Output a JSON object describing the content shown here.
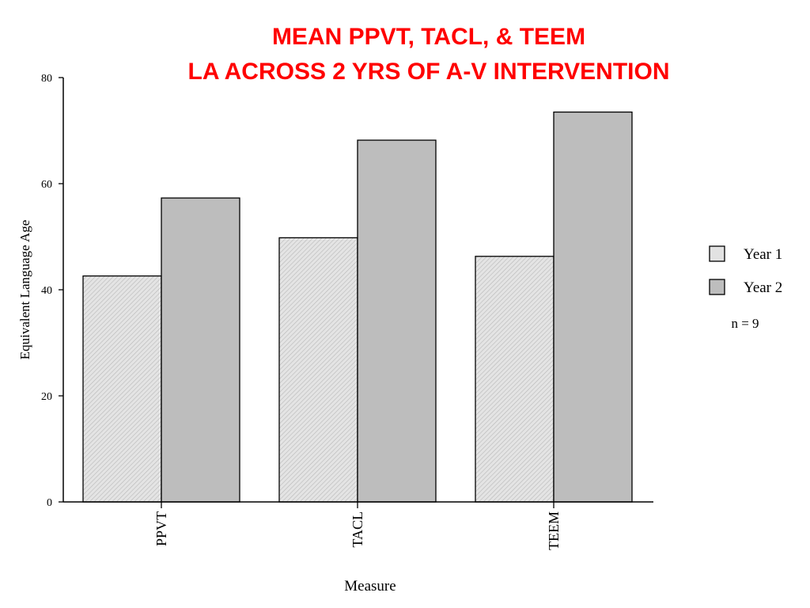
{
  "title": {
    "line1": "MEAN PPVT, TACL, & TEEM",
    "line2": "LA ACROSS 2 YRS OF A-V INTERVENTION"
  },
  "chart_data": {
    "type": "bar",
    "title": "MEAN PPVT, TACL, & TEEM LA ACROSS 2 YRS OF A-V INTERVENTION",
    "categories": [
      "PPVT",
      "TACL",
      "TEEM"
    ],
    "series": [
      {
        "name": "Year 1",
        "values": [
          42.6,
          49.8,
          46.3
        ],
        "fill": "#dcdcdc",
        "pattern": "hatched"
      },
      {
        "name": "Year 2",
        "values": [
          57.3,
          68.2,
          73.5
        ],
        "fill": "#bdbdbd",
        "pattern": "solid"
      }
    ],
    "xlabel": "Measure",
    "ylabel": "Equivalent Language Age",
    "ylim": [
      0,
      80
    ],
    "yticks": [
      0,
      20,
      40,
      60,
      80
    ],
    "grid": false,
    "legend_position": "right",
    "annotation": "n = 9"
  },
  "colors": {
    "title": "#ff0000",
    "axis": "#000000",
    "year1_fill": "#dcdcdc",
    "year2_fill": "#bdbdbd"
  }
}
